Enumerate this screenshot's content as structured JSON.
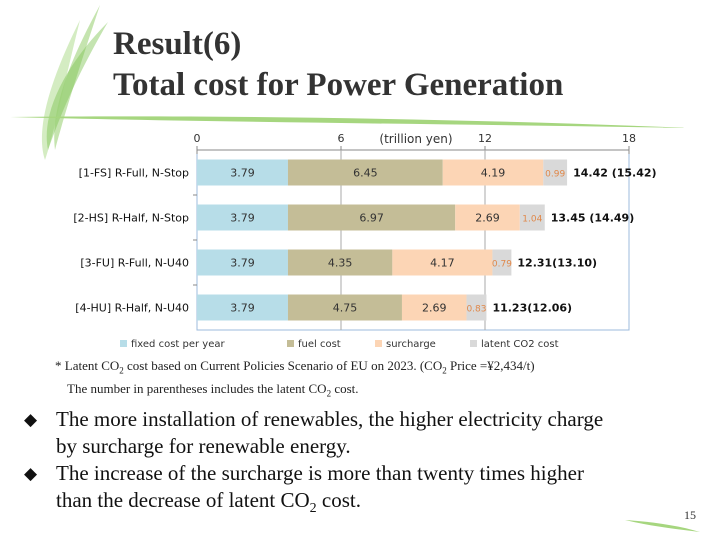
{
  "slide": {
    "title_line1": "Result(6)",
    "title_line2": "Total cost for Power Generation",
    "page_number": "15"
  },
  "chart_data": {
    "type": "bar",
    "orientation": "horizontal",
    "stacked": true,
    "unit_label": "(trillion  yen)",
    "xlim": [
      0,
      18
    ],
    "xticks": [
      "0",
      "6",
      "12",
      "18"
    ],
    "categories": [
      "[1-FS]  R-Full, N-Stop",
      "[2-HS]  R-Half, N-Stop",
      "[3-FU]  R-Full, N-U40",
      "[4-HU]  R-Half, N-U40"
    ],
    "series": [
      {
        "name": "fixed cost per year",
        "color": "#b7dde8",
        "values": [
          3.79,
          3.79,
          3.79,
          3.79
        ],
        "labels": [
          "3.79",
          "3.79",
          "3.79",
          "3.79"
        ]
      },
      {
        "name": "fuel cost",
        "color": "#c4bd97",
        "values": [
          6.45,
          6.97,
          4.35,
          4.75
        ],
        "labels": [
          "6.45",
          "6.97",
          "4.35",
          "4.75"
        ]
      },
      {
        "name": "surcharge",
        "color": "#fcd5b5",
        "values": [
          4.19,
          2.69,
          4.17,
          2.69
        ],
        "labels": [
          "4.19",
          "2.69",
          "4.17",
          "2.69"
        ]
      },
      {
        "name": "latent CO2 cost",
        "color": "#d9d9d9",
        "values": [
          0.99,
          1.04,
          0.79,
          0.83
        ],
        "labels": [
          "0.99",
          "1.04",
          "0.79",
          "0.83"
        ]
      }
    ],
    "totals": [
      "14.42 (15.42)",
      "13.45 (14.49)",
      "12.31(13.10)",
      "11.23(12.06)"
    ],
    "legend_position": "bottom"
  },
  "note": {
    "line1_a": "* Latent CO",
    "line1_b": "2",
    "line1_c": " cost based on Current Policies Scenario of EU on 2023. (CO",
    "line1_d": "2",
    "line1_e": " Price =¥2,434/t)",
    "line2_a": "The number in parentheses  includes  the latent  CO",
    "line2_b": "2",
    "line2_c": " cost."
  },
  "bullets": {
    "b1_line1": "The more installation of renewables, the higher electricity charge",
    "b1_line2": "by surcharge  for renewable energy.",
    "b2_line1": "The increase of the surcharge  is more than twenty times higher",
    "b2_line2a": "than the decrease of  latent CO",
    "b2_line2b": "2",
    "b2_line2c": " cost.",
    "marker": "◆"
  }
}
